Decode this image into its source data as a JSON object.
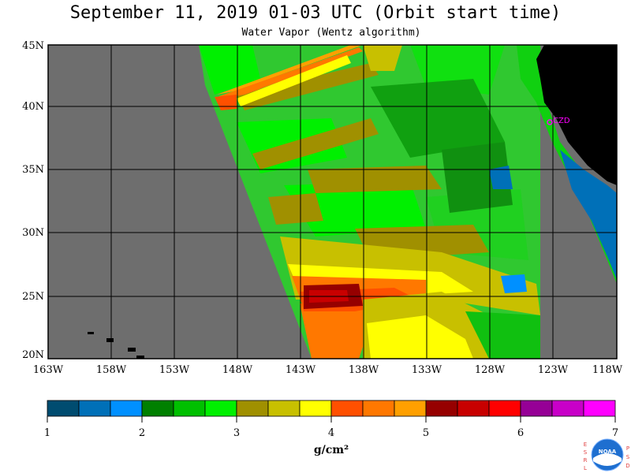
{
  "header": {
    "title": "September 11, 2019  01-03 UTC  (Orbit start time)",
    "subtitle": "Water Vapor (Wentz algorithm)"
  },
  "map": {
    "lat_labels": [
      "45N",
      "40N",
      "35N",
      "30N",
      "25N",
      "20N"
    ],
    "lon_labels": [
      "163W",
      "158W",
      "153W",
      "148W",
      "143W",
      "138W",
      "133W",
      "128W",
      "123W",
      "118W"
    ],
    "station_label": "CZD"
  },
  "colorbar": {
    "labels": [
      "1",
      "2",
      "3",
      "4",
      "5",
      "6",
      "7"
    ],
    "unit": "g/cm²",
    "colors": [
      "#004c70",
      "#0070b8",
      "#0090ff",
      "#008000",
      "#00c000",
      "#00f000",
      "#a09000",
      "#c8c000",
      "#ffff00",
      "#ff5000",
      "#ff7800",
      "#ffa000",
      "#960000",
      "#c80000",
      "#ff0000",
      "#960096",
      "#c800c8",
      "#ff00ff"
    ]
  },
  "logo": {
    "left_letters": [
      "E",
      "S",
      "R",
      "L"
    ],
    "right_letters": [
      "P",
      "S",
      "D"
    ],
    "name": "NOAA"
  }
}
